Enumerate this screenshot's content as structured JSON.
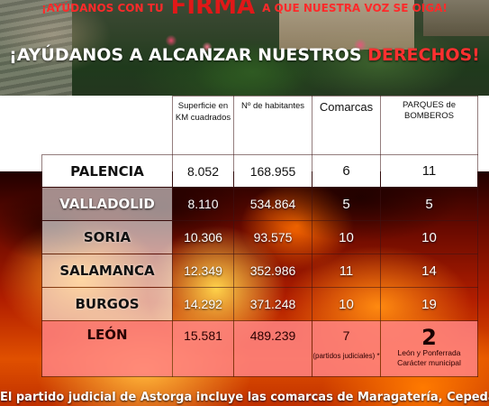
{
  "banner": {
    "top_left": "¡AYÚDANOS CON TU",
    "top_big": "FIRMA",
    "top_right": "A QUE NUESTRA VOZ SE OIGA!",
    "headline_white": "¡AYÚDANOS A ALCANZAR NUESTROS ",
    "headline_red": "DERECHOS!"
  },
  "table": {
    "headers": {
      "superficie": "Superficie en KM cuadrados",
      "habitantes": "Nº de habitantes",
      "comarcas": "Comarcas",
      "parques": "PARQUES de BOMBEROS"
    },
    "rows": [
      {
        "name": "PALENCIA",
        "superficie": "8.052",
        "habitantes": "168.955",
        "comarcas": "6",
        "parques": "11"
      },
      {
        "name": "VALLADOLID",
        "superficie": "8.110",
        "habitantes": "534.864",
        "comarcas": "5",
        "parques": "5"
      },
      {
        "name": "SORIA",
        "superficie": "10.306",
        "habitantes": "93.575",
        "comarcas": "10",
        "parques": "10"
      },
      {
        "name": "SALAMANCA",
        "superficie": "12.349",
        "habitantes": "352.986",
        "comarcas": "11",
        "parques": "14"
      },
      {
        "name": "BURGOS",
        "superficie": "14.292",
        "habitantes": "371.248",
        "comarcas": "10",
        "parques": "19"
      },
      {
        "name": "LEÓN",
        "superficie": "15.581",
        "habitantes": "489.239",
        "comarcas": "7",
        "comarcas_note": "(partidos judiciales) *",
        "parques": "2",
        "parques_note_1": "León y Ponferrada",
        "parques_note_2": "Carácter municipal"
      }
    ]
  },
  "footer": {
    "text": "El partido judicial de Astorga incluye las comarcas de Maragatería, Cepeda,"
  }
}
